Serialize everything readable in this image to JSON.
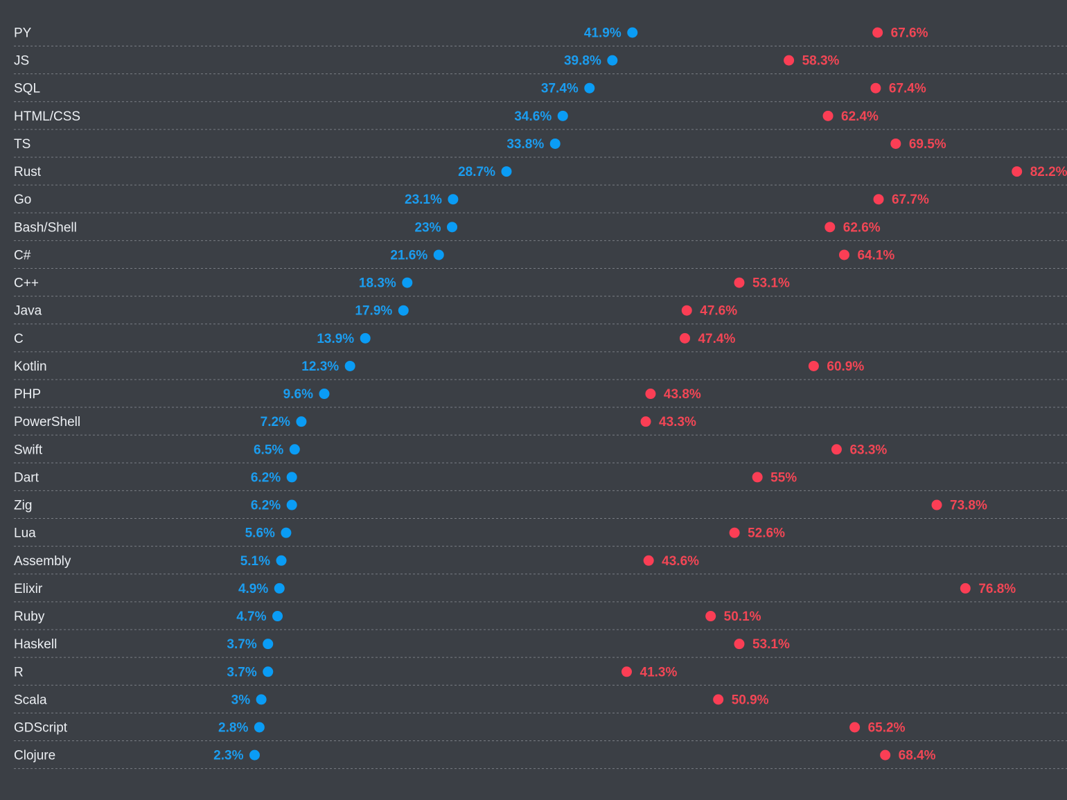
{
  "colors": {
    "background": "#3b3f45",
    "start_dot": "#0a9cf5",
    "end_dot": "#fb3e55",
    "start_label": "#1b9df0",
    "end_label": "#f24655",
    "bar_start": "#2c6fa4",
    "bar_end": "#b9404f",
    "divider": "#7a7e85",
    "category_text": "#eceff3"
  },
  "chart_data": {
    "type": "dumbbell",
    "title": "",
    "xlabel": "",
    "ylabel": "",
    "grid": false,
    "start_format": "percent",
    "categories": [
      "PY",
      "JS",
      "SQL",
      "HTML/CSS",
      "TS",
      "Rust",
      "Go",
      "Bash/Shell",
      "C#",
      "C++",
      "Java",
      "C",
      "Kotlin",
      "PHP",
      "PowerShell",
      "Swift",
      "Dart",
      "Zig",
      "Lua",
      "Assembly",
      "Elixir",
      "Ruby",
      "Haskell",
      "R",
      "Scala",
      "GDScript",
      "Clojure"
    ],
    "series": [
      {
        "values": [
          41.9,
          39.8,
          37.4,
          34.6,
          33.8,
          28.7,
          23.1,
          23,
          21.6,
          18.3,
          17.9,
          13.9,
          12.3,
          9.6,
          7.2,
          6.5,
          6.2,
          6.2,
          5.6,
          5.1,
          4.9,
          4.7,
          3.7,
          3.7,
          3,
          2.8,
          2.3
        ]
      },
      {
        "values": [
          67.6,
          58.3,
          67.4,
          62.4,
          69.5,
          82.2,
          67.7,
          62.6,
          64.1,
          53.1,
          47.6,
          47.4,
          60.9,
          43.8,
          43.3,
          63.3,
          55,
          73.8,
          52.6,
          43.6,
          76.8,
          50.1,
          53.1,
          41.3,
          50.9,
          65.2,
          68.4
        ]
      }
    ]
  }
}
